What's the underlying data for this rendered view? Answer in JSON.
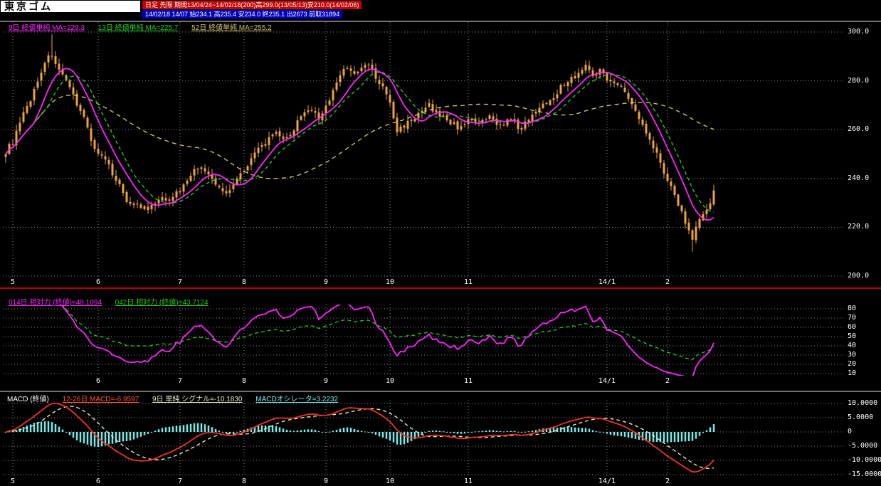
{
  "header": {
    "title": "東京ゴム",
    "period_bar": "日足 先限 期間13/04/24~14/02/18(200)高299.0(13/05/13)安210.0(14/02/06)",
    "quote_bar": "14/02/18 14/07 始234.1 高235.4 安234.0 終235.1 出2673 前取31894"
  },
  "colors": {
    "background": "#000000",
    "grid": "#8a8a8a",
    "axis_text": "#ffffff",
    "candle": "#eda33e",
    "ma9": "#ff22ff",
    "ma13": "#22cc22",
    "ma52": "#cfc06a",
    "separator_red": "#bb0000",
    "separator_white": "#dddddd",
    "rsi14": "#ff22ff",
    "rsi42": "#22cc22",
    "macd_hist": "#7ae8e8",
    "macd_line": "#ee3322",
    "signal_line": "#e8e8c8"
  },
  "main_chart": {
    "legend": [
      {
        "label": "9日 終値単純 MA=229.3",
        "color": "#ff22ff"
      },
      {
        "label": "13日 終値単純 MA=225.7",
        "color": "#22cc22"
      },
      {
        "label": "52日 終値単純 MA=255.2",
        "color": "#cfc06a"
      }
    ],
    "y_ticks": [
      {
        "label": "300.0",
        "value": 300
      },
      {
        "label": "280.0",
        "value": 280
      },
      {
        "label": "260.0",
        "value": 260
      },
      {
        "label": "240.0",
        "value": 240
      },
      {
        "label": "220.0",
        "value": 220
      },
      {
        "label": "200.0",
        "value": 200
      }
    ],
    "x_ticks": [
      {
        "label": "5",
        "day": 2
      },
      {
        "label": "6",
        "day": 26
      },
      {
        "label": "7",
        "day": 49
      },
      {
        "label": "8",
        "day": 67
      },
      {
        "label": "9",
        "day": 90
      },
      {
        "label": "10",
        "day": 108
      },
      {
        "label": "11",
        "day": 130
      },
      {
        "label": "14/1",
        "day": 169
      },
      {
        "label": "2",
        "day": 186
      }
    ]
  },
  "rsi_panel": {
    "legend": [
      {
        "label": "014日 相対力 (終値)=48.1094",
        "color": "#ff22ff"
      },
      {
        "label": "042日 相対力 (終値)=43.7124",
        "color": "#22cc22"
      }
    ],
    "y_ticks": [
      {
        "label": "80",
        "value": 80
      },
      {
        "label": "70",
        "value": 70
      },
      {
        "label": "60",
        "value": 60
      },
      {
        "label": "50",
        "value": 50
      },
      {
        "label": "40",
        "value": 40
      },
      {
        "label": "30",
        "value": 30
      },
      {
        "label": "20",
        "value": 20
      },
      {
        "label": "10",
        "value": 10
      }
    ],
    "x_ticks": [
      {
        "label": "6",
        "day": 26
      },
      {
        "label": "7",
        "day": 49
      },
      {
        "label": "8",
        "day": 67
      },
      {
        "label": "9",
        "day": 90
      },
      {
        "label": "10",
        "day": 108
      },
      {
        "label": "11",
        "day": 130
      },
      {
        "label": "14/1",
        "day": 169
      },
      {
        "label": "2",
        "day": 186
      }
    ]
  },
  "macd_panel": {
    "legend_title": "MACD (終値)",
    "legend": [
      {
        "label": "12-26日 MACD=-6.9597",
        "color": "#ff5533"
      },
      {
        "label": "9日 単純 シグナル=-10.1830",
        "color": "#e8e8c8"
      },
      {
        "label": "MACDオシレータ=3.2232",
        "color": "#7ae8e8"
      }
    ],
    "y_ticks": [
      {
        "label": "10.0000",
        "value": 10
      },
      {
        "label": "5.0000",
        "value": 5
      },
      {
        "label": "0",
        "value": 0
      },
      {
        "label": "-5.0000",
        "value": -5
      },
      {
        "label": "-10.0000",
        "value": -10
      },
      {
        "label": "-15.0000",
        "value": -15
      }
    ],
    "x_ticks": [
      {
        "label": "5",
        "day": 2
      },
      {
        "label": "6",
        "day": 26
      },
      {
        "label": "7",
        "day": 49
      },
      {
        "label": "8",
        "day": 67
      },
      {
        "label": "9",
        "day": 90
      },
      {
        "label": "10",
        "day": 108
      },
      {
        "label": "11",
        "day": 130
      },
      {
        "label": "14/1",
        "day": 169
      },
      {
        "label": "2",
        "day": 186
      }
    ]
  },
  "chart_data": [
    {
      "type": "candlestick",
      "name": "東京ゴム 日足 先限",
      "date_range": "13/04/24~14/02/18",
      "num_bars": 200,
      "ylim": [
        197,
        304
      ],
      "last_close": 235.1,
      "period_high": {
        "value": 299.0,
        "date": "13/05/13",
        "day": 13
      },
      "period_low": {
        "value": 210.0,
        "date": "14/02/06",
        "day": 193
      },
      "close_keypoints": [
        [
          0,
          251
        ],
        [
          2,
          255
        ],
        [
          5,
          266
        ],
        [
          8,
          276
        ],
        [
          11,
          288
        ],
        [
          13,
          291
        ],
        [
          15,
          284
        ],
        [
          17,
          279
        ],
        [
          19,
          274
        ],
        [
          22,
          265
        ],
        [
          25,
          252
        ],
        [
          28,
          247
        ],
        [
          31,
          240
        ],
        [
          34,
          231
        ],
        [
          37,
          229
        ],
        [
          40,
          227
        ],
        [
          43,
          231
        ],
        [
          46,
          232
        ],
        [
          49,
          235
        ],
        [
          52,
          242
        ],
        [
          55,
          245
        ],
        [
          57,
          241
        ],
        [
          60,
          236
        ],
        [
          62,
          234
        ],
        [
          64,
          238
        ],
        [
          67,
          244
        ],
        [
          70,
          250
        ],
        [
          73,
          255
        ],
        [
          76,
          258
        ],
        [
          79,
          256
        ],
        [
          82,
          263
        ],
        [
          85,
          268
        ],
        [
          88,
          265
        ],
        [
          91,
          272
        ],
        [
          94,
          283
        ],
        [
          96,
          286
        ],
        [
          98,
          282
        ],
        [
          100,
          285
        ],
        [
          102,
          287
        ],
        [
          104,
          281
        ],
        [
          106,
          277
        ],
        [
          108,
          271
        ],
        [
          110,
          259
        ],
        [
          112,
          262
        ],
        [
          114,
          264
        ],
        [
          117,
          267
        ],
        [
          119,
          270
        ],
        [
          121,
          267
        ],
        [
          124,
          264
        ],
        [
          127,
          261
        ],
        [
          130,
          264
        ],
        [
          133,
          262
        ],
        [
          136,
          265
        ],
        [
          139,
          262
        ],
        [
          142,
          264
        ],
        [
          145,
          260
        ],
        [
          148,
          267
        ],
        [
          151,
          270
        ],
        [
          154,
          274
        ],
        [
          157,
          279
        ],
        [
          160,
          282
        ],
        [
          163,
          286
        ],
        [
          165,
          283
        ],
        [
          167,
          284
        ],
        [
          169,
          281
        ],
        [
          171,
          280
        ],
        [
          173,
          277
        ],
        [
          175,
          273
        ],
        [
          177,
          267
        ],
        [
          179,
          262
        ],
        [
          181,
          257
        ],
        [
          183,
          250
        ],
        [
          185,
          243
        ],
        [
          187,
          236
        ],
        [
          189,
          230
        ],
        [
          191,
          222
        ],
        [
          192,
          219
        ],
        [
          193,
          215
        ],
        [
          194,
          221
        ],
        [
          195,
          223
        ],
        [
          196,
          225
        ],
        [
          197,
          227
        ],
        [
          198,
          230
        ],
        [
          199,
          234
        ]
      ],
      "moving_averages": [
        {
          "period": 9,
          "current": 229.3,
          "style": "solid"
        },
        {
          "period": 13,
          "current": 225.7,
          "style": "dashed"
        },
        {
          "period": 52,
          "current": 255.2,
          "style": "dashed"
        }
      ]
    },
    {
      "type": "line",
      "name": "相対力 (RSI)",
      "ylim": [
        7,
        84
      ],
      "series": [
        {
          "period": 14,
          "current": 48.1094,
          "style": "solid"
        },
        {
          "period": 42,
          "current": 43.7124,
          "style": "dashed"
        }
      ],
      "derived": "computed from close_keypoints of panel 1"
    },
    {
      "type": "bar+line",
      "name": "MACD",
      "params": "EMA12-EMA26, signal SMA9",
      "ylim": [
        -16.5,
        11
      ],
      "macd_current": -6.9597,
      "signal_current": -10.183,
      "oscillator_current": 3.2232,
      "derived": "computed from close_keypoints of panel 1"
    }
  ]
}
